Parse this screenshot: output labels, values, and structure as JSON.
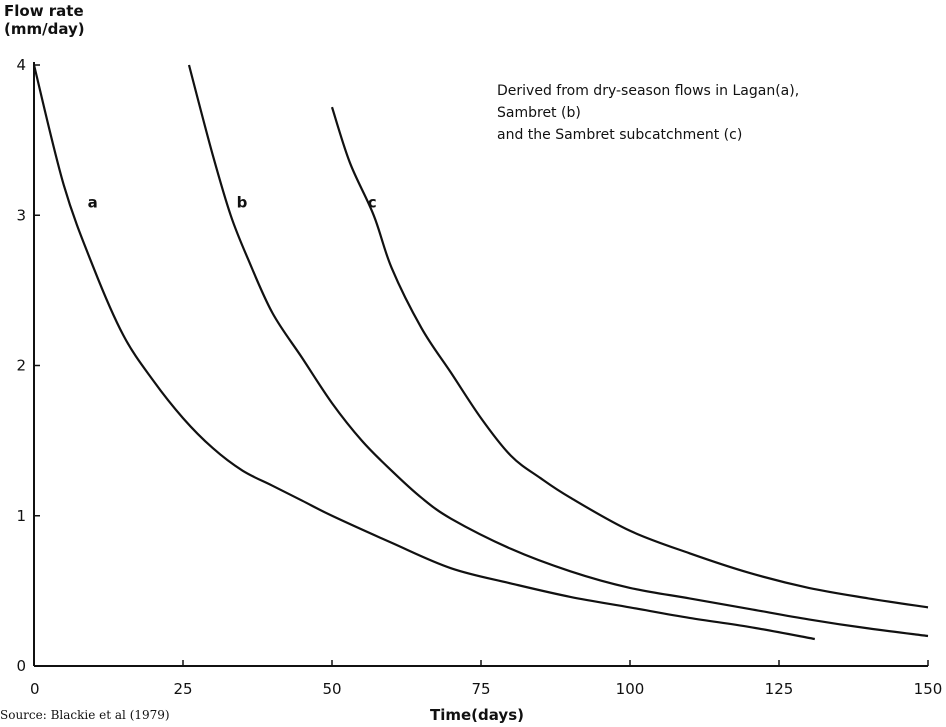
{
  "chart_data": {
    "type": "line",
    "ylabel": [
      "Flow rate",
      "(mm/day)"
    ],
    "xlabel": "Time(days)",
    "xlim": [
      0,
      150
    ],
    "ylim": [
      0,
      4
    ],
    "xticks": [
      0,
      25,
      50,
      75,
      100,
      125,
      150
    ],
    "yticks": [
      0,
      1,
      2,
      3,
      4
    ],
    "grid": false,
    "annotation": [
      "Derived from dry-season flows in Lagan(a),",
      "Sambret (b)",
      "and the Sambret subcatchment (c)"
    ],
    "source": "Source: Blackie et al (1979)",
    "series": [
      {
        "name": "a",
        "x": [
          0,
          5,
          10,
          15,
          20,
          25,
          30,
          35,
          40,
          45,
          50,
          60,
          70,
          80,
          90,
          100,
          110,
          120,
          131
        ],
        "y": [
          4.0,
          3.2,
          2.65,
          2.2,
          1.9,
          1.65,
          1.45,
          1.3,
          1.2,
          1.1,
          1.0,
          0.82,
          0.65,
          0.55,
          0.46,
          0.39,
          0.32,
          0.26,
          0.18
        ]
      },
      {
        "name": "b",
        "x": [
          26,
          30,
          33,
          36,
          40,
          45,
          50,
          55,
          60,
          65,
          70,
          80,
          90,
          100,
          110,
          120,
          130,
          140,
          150
        ],
        "y": [
          4.0,
          3.4,
          3.0,
          2.7,
          2.35,
          2.05,
          1.75,
          1.5,
          1.3,
          1.12,
          0.98,
          0.78,
          0.63,
          0.52,
          0.45,
          0.38,
          0.31,
          0.25,
          0.2
        ]
      },
      {
        "name": "c",
        "x": [
          50,
          53,
          57,
          60,
          65,
          70,
          75,
          80,
          85,
          90,
          100,
          110,
          120,
          130,
          140,
          150
        ],
        "y": [
          3.72,
          3.35,
          3.0,
          2.65,
          2.25,
          1.95,
          1.65,
          1.4,
          1.25,
          1.12,
          0.9,
          0.75,
          0.62,
          0.52,
          0.45,
          0.39
        ]
      }
    ],
    "curve_labels": [
      {
        "text": "a",
        "x": 9,
        "y": 3.05
      },
      {
        "text": "b",
        "x": 34,
        "y": 3.05
      },
      {
        "text": "c",
        "x": 56,
        "y": 3.05
      }
    ]
  }
}
